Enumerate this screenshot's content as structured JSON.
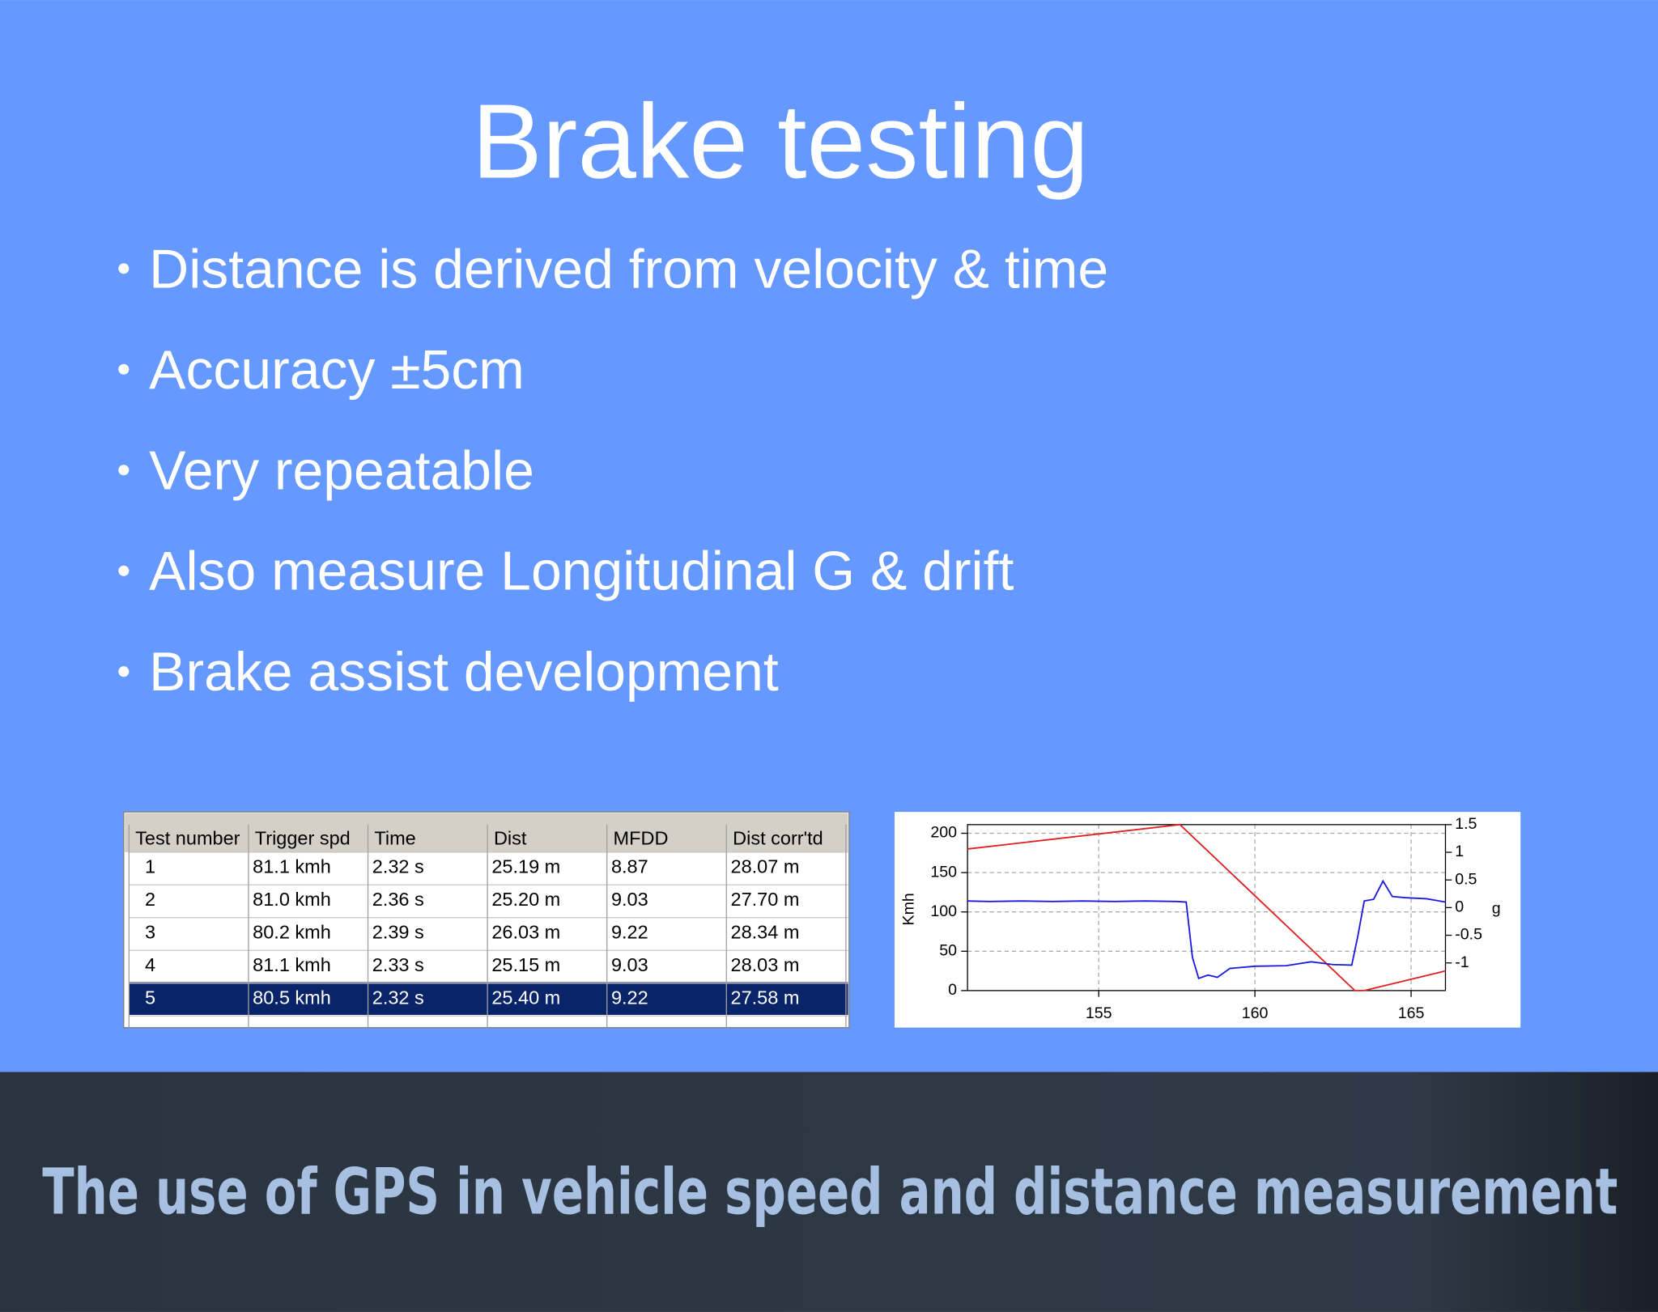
{
  "title": "Brake testing",
  "bullets": [
    "Distance is derived from velocity & time",
    "Accuracy ±5cm",
    "Very repeatable",
    "Also measure Longitudinal G & drift",
    "Brake assist development"
  ],
  "table": {
    "columns": [
      "Test number",
      "Trigger spd",
      "Time",
      "Dist",
      "MFDD",
      "Dist corr'td"
    ],
    "rows": [
      [
        "1",
        "81.1 kmh",
        "2.32 s",
        "25.19 m",
        "8.87",
        "28.07 m"
      ],
      [
        "2",
        "81.0 kmh",
        "2.36 s",
        "25.20 m",
        "9.03",
        "27.70 m"
      ],
      [
        "3",
        "80.2 kmh",
        "2.39 s",
        "26.03 m",
        "9.22",
        "28.34 m"
      ],
      [
        "4",
        "81.1 kmh",
        "2.33 s",
        "25.15 m",
        "9.03",
        "28.03 m"
      ],
      [
        "5",
        "80.5 kmh",
        "2.32 s",
        "25.40 m",
        "9.22",
        "27.58 m"
      ]
    ],
    "selected_row": 4
  },
  "chart_data": {
    "type": "line",
    "y_label": "Kmh",
    "y2_label": "g",
    "xlim": [
      150.8,
      166.1
    ],
    "ylim": [
      0,
      211
    ],
    "y2lim": [
      -1.5,
      1.5
    ],
    "xticks": [
      155,
      160,
      165
    ],
    "yticks": [
      0,
      50,
      100,
      150,
      200
    ],
    "y2ticks": [
      1.5,
      1,
      0.5,
      0,
      -0.5,
      -1
    ],
    "grid": true,
    "series": [
      {
        "color": "#e02020",
        "x": [
          150.8,
          157.6,
          163.2,
          163.5,
          166.1
        ],
        "values": [
          180,
          211,
          0,
          0,
          25
        ]
      },
      {
        "color": "#1a1adf",
        "axis": "y2",
        "x": [
          150.8,
          151.5,
          152.5,
          153.5,
          154.5,
          155.5,
          156.5,
          157.5,
          157.8,
          158.0,
          158.2,
          158.5,
          158.8,
          159.2,
          160,
          161,
          161.8,
          162.5,
          163.1,
          163.3,
          163.5,
          163.8,
          164.1,
          164.4,
          164.8,
          165.5,
          166.1
        ],
        "values": [
          0.12,
          0.11,
          0.12,
          0.11,
          0.12,
          0.11,
          0.12,
          0.11,
          0.1,
          -0.9,
          -1.28,
          -1.22,
          -1.26,
          -1.1,
          -1.06,
          -1.05,
          -0.98,
          -1.03,
          -1.04,
          -0.5,
          0.12,
          0.15,
          0.48,
          0.2,
          0.18,
          0.16,
          0.1
        ]
      }
    ]
  },
  "footer": "The use of GPS in vehicle speed and distance measurement"
}
